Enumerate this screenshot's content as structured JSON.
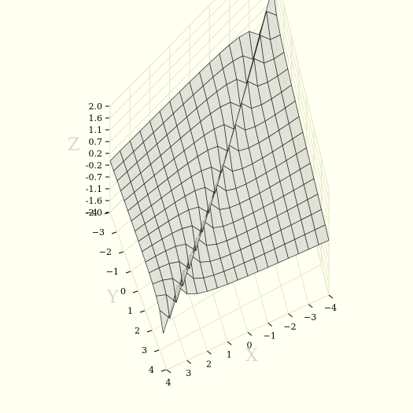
{
  "chart_data": {
    "type": "surface3d",
    "title": "",
    "xlabel": "X",
    "ylabel": "Y",
    "zlabel": "Z",
    "x_ticks": [
      "−4",
      "−3",
      "−2",
      "−1",
      "0",
      "1",
      "2",
      "3",
      "4"
    ],
    "y_ticks": [
      "−4",
      "−3",
      "−2",
      "−1",
      "0",
      "1",
      "2",
      "3",
      "4"
    ],
    "z_ticks": [
      "2.0",
      "1.6",
      "1.1",
      "0.7",
      "0.2",
      "-0.2",
      "-0.7",
      "-1.1",
      "-1.6",
      "-2.0"
    ],
    "xlim": [
      -4,
      4
    ],
    "ylim": [
      -4,
      4
    ],
    "zlim": [
      -2.0,
      2.0
    ],
    "grid": true,
    "surface": "wireframe surface with a vertical discontinuity along the diagonal, two sheets rising and falling steeply near it",
    "colors": {
      "background": "#fffff2",
      "pane": "#fffff2",
      "grid": "#e6e9c8",
      "surface_fill": "#d9d9d2",
      "surface_edge": "#2a2a2a"
    }
  }
}
